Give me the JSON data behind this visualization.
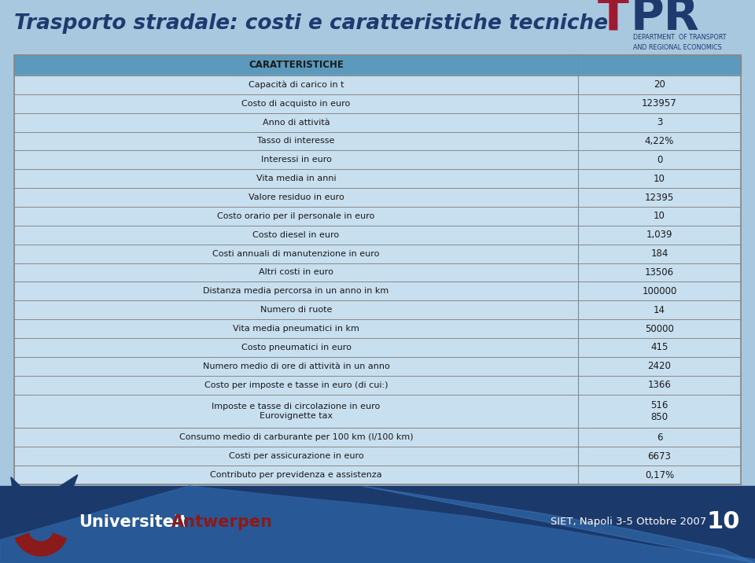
{
  "title": "Trasporto stradale: costi e caratteristiche tecniche",
  "title_fontsize": 19,
  "title_color": "#1F3A6E",
  "bg_color": "#A8C8E0",
  "table_bg_light": "#C8DFF0",
  "table_bg_header": "#5B9ABD",
  "table_border_color": "#888888",
  "col1_header": "CARATTERISTICHE",
  "rows": [
    [
      "Capacità di carico in t",
      "20"
    ],
    [
      "Costo di acquisto in euro",
      "123957"
    ],
    [
      "Anno di attività",
      "3"
    ],
    [
      "Tasso di interesse",
      "4,22%"
    ],
    [
      "Interessi in euro",
      "0"
    ],
    [
      "Vita media in anni",
      "10"
    ],
    [
      "Valore residuo in euro",
      "12395"
    ],
    [
      "Costo orario per il personale in euro",
      "10"
    ],
    [
      "Costo diesel in euro",
      "1,039"
    ],
    [
      "Costi annuali di manutenzione in euro",
      "184"
    ],
    [
      "Altri costi in euro",
      "13506"
    ],
    [
      "Distanza media percorsa in un anno in km",
      "100000"
    ],
    [
      "Numero di ruote",
      "14"
    ],
    [
      "Vita media pneumatici in km",
      "50000"
    ],
    [
      "Costo pneumatici in euro",
      "415"
    ],
    [
      "Numero medio di ore di attività in un anno",
      "2420"
    ],
    [
      "Costo per imposte e tasse in euro (di cui:)",
      "1366"
    ],
    [
      "Imposte e tasse di circolazione in euro\nEurovignette tax",
      "516\n850"
    ],
    [
      "Consumo medio di carburante per 100 km (l/100 km)",
      "6"
    ],
    [
      "Costi per assicurazione in euro",
      "6673"
    ],
    [
      "Contributo per previdenza e assistenza",
      "0,17%"
    ]
  ],
  "footer_right": "SIET, Napoli 3-5 Ottobre 2007",
  "footer_page": "10",
  "tpr_T_color": "#9B1B30",
  "tpr_PR_color": "#1F3A6E",
  "tpr_sub": "DEPARTMENT  OF TRANSPORT\nAND REGIONAL ECONOMICS",
  "navy": "#1B3A6B",
  "mid_blue": "#2E6DA4",
  "univ_blue": "#3B7AB5"
}
